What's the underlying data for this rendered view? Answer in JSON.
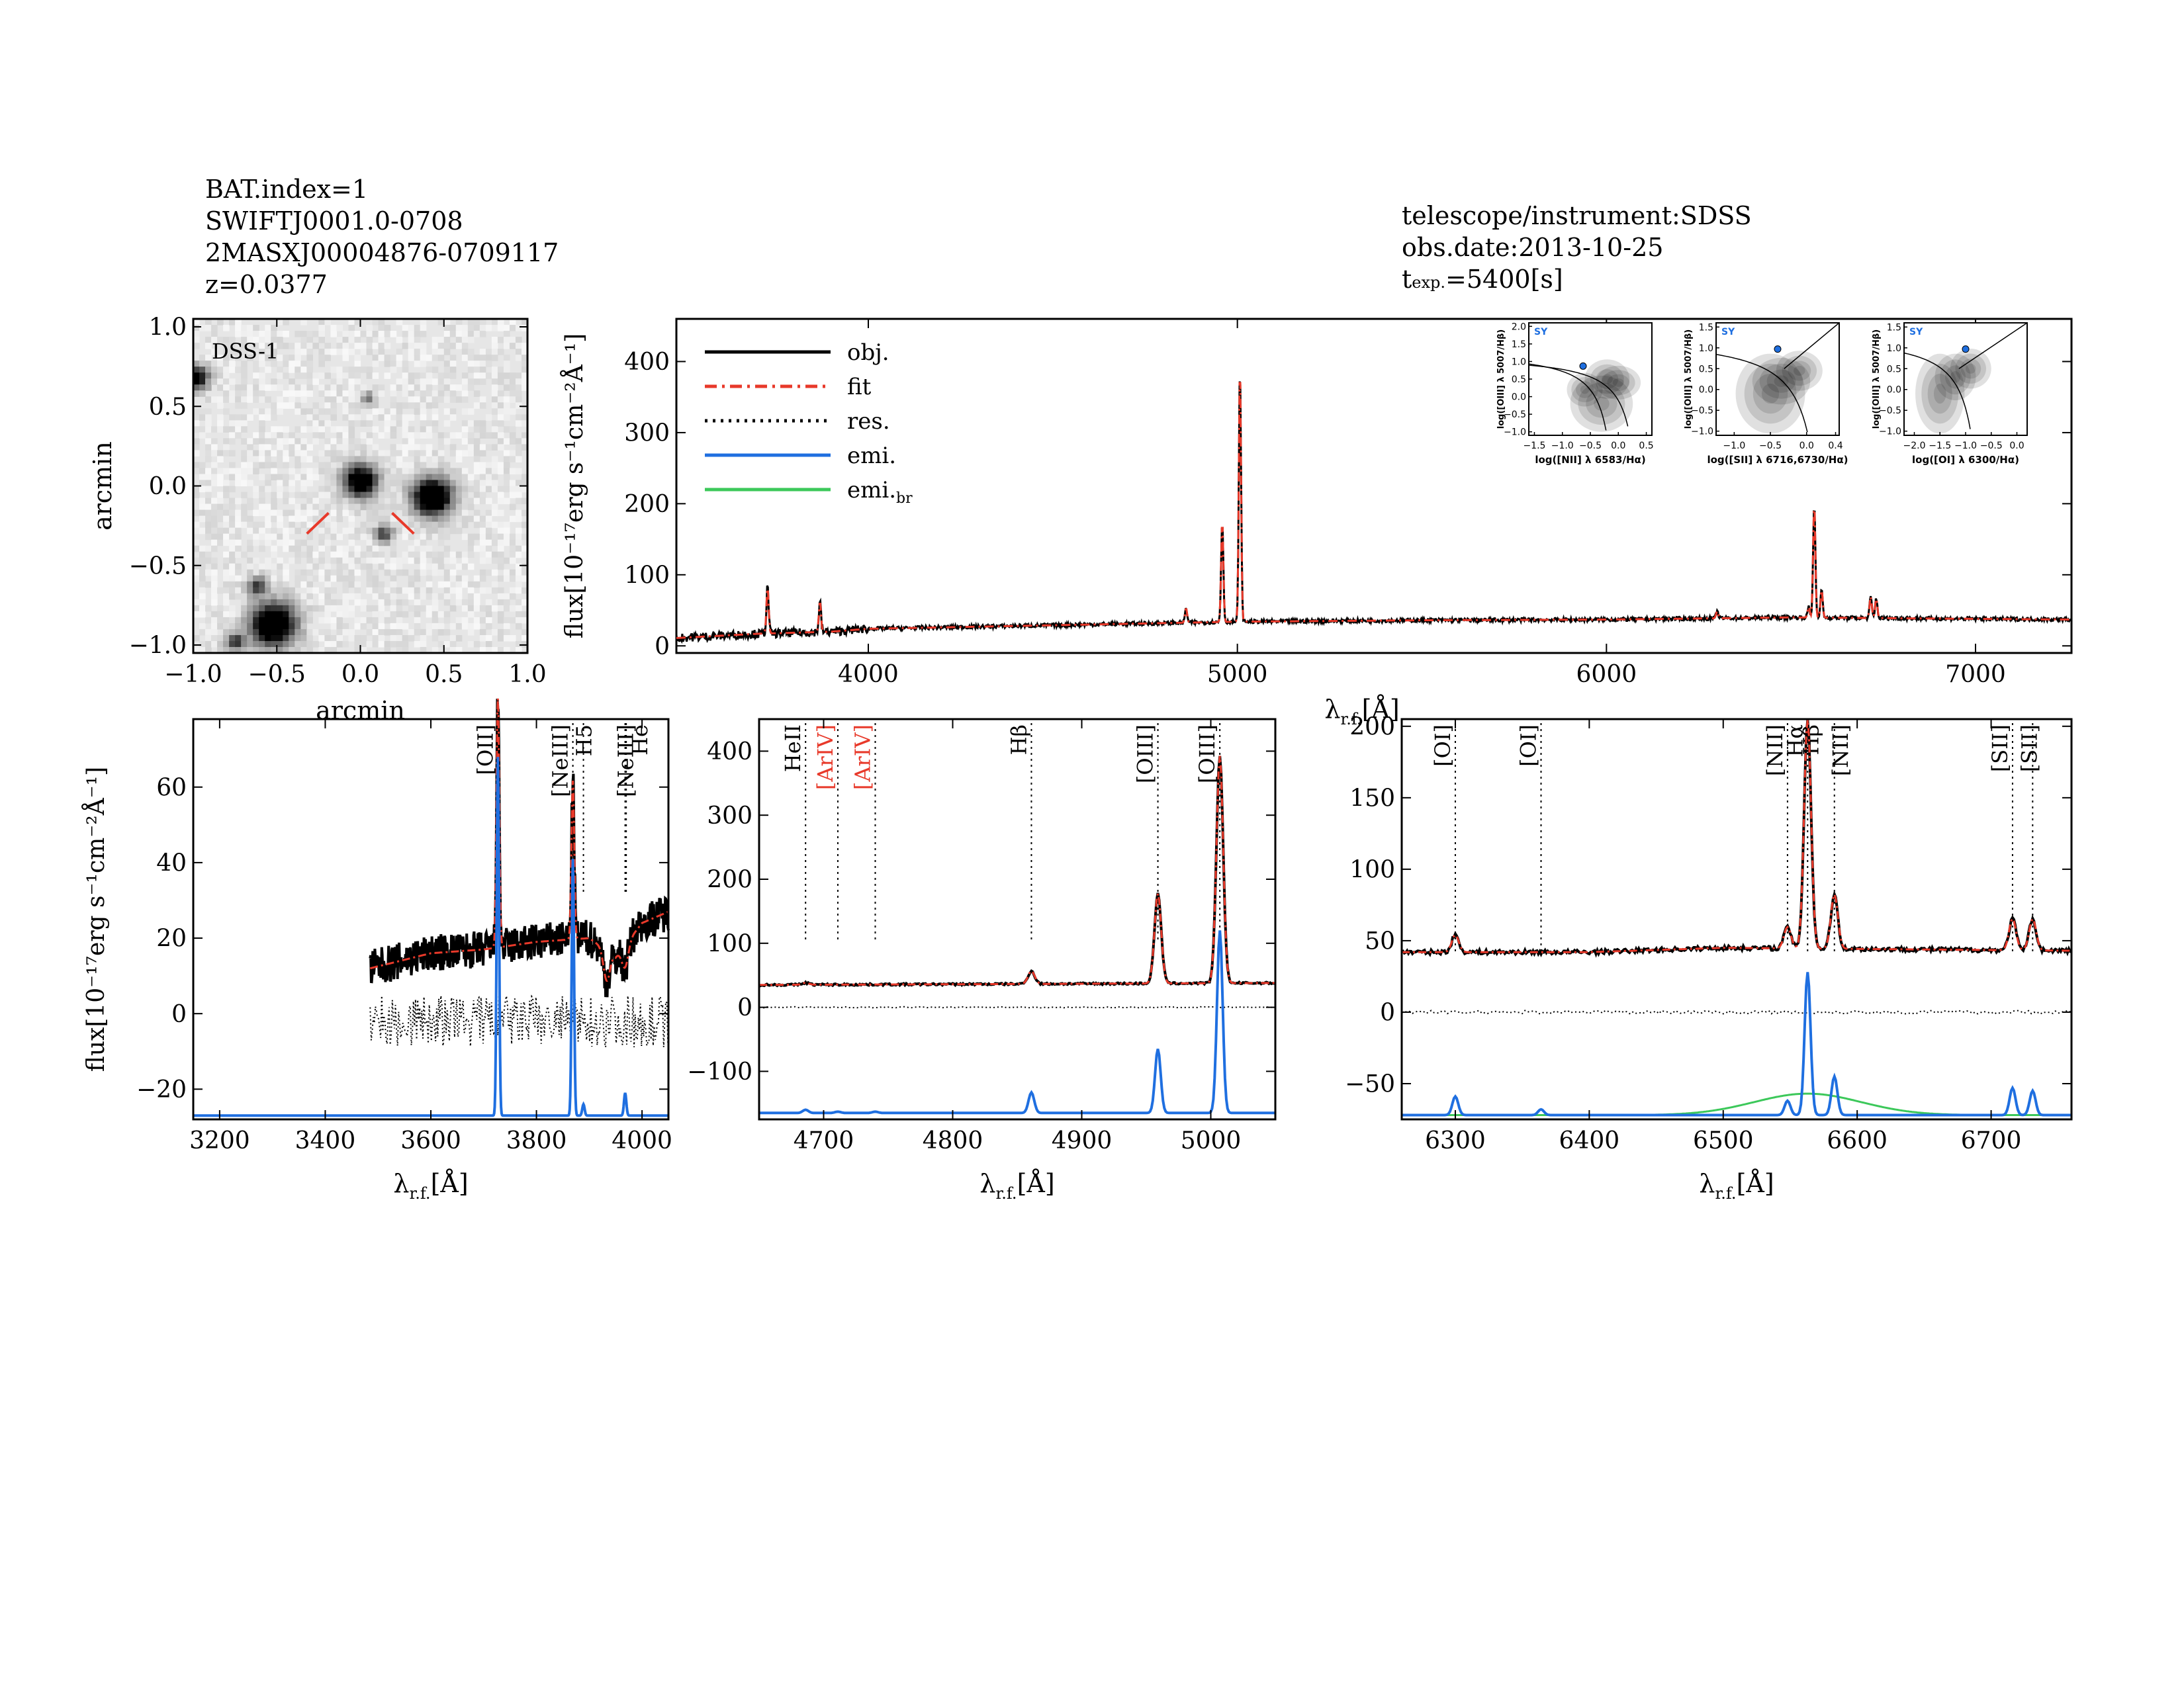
{
  "header_left": {
    "bat_index": "BAT.index=1",
    "swift_name": "SWIFTJ0001.0-0708",
    "counterpart": "2MASXJ00004876-0709117",
    "redshift": "z=0.0377"
  },
  "header_right": {
    "instrument": "telescope/instrument:SDSS",
    "obs_date": "obs.date:2013-10-25",
    "texp_prefix": "t",
    "texp_sub": "exp.",
    "texp_value": "=5400[s]"
  },
  "colors": {
    "obj": "#000000",
    "fit": "#e8392a",
    "res": "#000000",
    "emi": "#1f6fe0",
    "emi_br": "#3cc85a",
    "red_label": "#e8392a",
    "dss_bg": "#e6e6e6"
  },
  "chart_data": [
    {
      "type": "image",
      "panel": "dss",
      "label": "DSS-1",
      "xlabel": "arcmin",
      "ylabel": "arcmin",
      "xlim": [
        -1.0,
        1.0
      ],
      "ylim": [
        -1.05,
        1.05
      ],
      "xticks": [
        "-1.0",
        "-0.5",
        "0.0",
        "0.5",
        "1.0"
      ],
      "yticks": [
        "1.0",
        "0.5",
        "0.0",
        "-0.5",
        "-1.0"
      ],
      "sources": [
        {
          "x": -0.98,
          "y": 0.68,
          "r": 0.05,
          "i": 0.7
        },
        {
          "x": 0.0,
          "y": 0.03,
          "r": 0.07,
          "i": 0.85
        },
        {
          "x": 0.43,
          "y": -0.07,
          "r": 0.08,
          "i": 1.0
        },
        {
          "x": -0.52,
          "y": -0.87,
          "r": 0.09,
          "i": 1.0
        },
        {
          "x": -0.62,
          "y": -0.63,
          "r": 0.04,
          "i": 0.5
        },
        {
          "x": -0.75,
          "y": -0.98,
          "r": 0.04,
          "i": 0.5
        },
        {
          "x": 0.14,
          "y": -0.3,
          "r": 0.04,
          "i": 0.45
        },
        {
          "x": 0.05,
          "y": 0.55,
          "r": 0.03,
          "i": 0.3
        }
      ]
    },
    {
      "type": "line",
      "panel": "overview",
      "xlabel_main": "λ",
      "xlabel_sub": "r.f.",
      "xlabel_unit": "[Å]",
      "ylabel": "flux[10⁻¹⁷erg s⁻¹cm⁻²Å⁻¹]",
      "xlim": [
        3480,
        7260
      ],
      "ylim": [
        -10,
        460
      ],
      "xticks": [
        4000,
        5000,
        6000,
        7000
      ],
      "yticks": [
        0,
        100,
        200,
        300,
        400
      ],
      "continuum": [
        [
          3480,
          11
        ],
        [
          3700,
          17
        ],
        [
          3900,
          20
        ],
        [
          4000,
          24
        ],
        [
          4200,
          26
        ],
        [
          4500,
          29
        ],
        [
          4800,
          32
        ],
        [
          5000,
          34
        ],
        [
          5500,
          36
        ],
        [
          6000,
          37
        ],
        [
          6500,
          40
        ],
        [
          7000,
          38
        ],
        [
          7260,
          37
        ]
      ],
      "lines": [
        [
          3727,
          66
        ],
        [
          3869,
          42
        ],
        [
          4861,
          20
        ],
        [
          4959,
          140
        ],
        [
          5007,
          355
        ],
        [
          6300,
          10
        ],
        [
          6548,
          15
        ],
        [
          6563,
          160
        ],
        [
          6583,
          40
        ],
        [
          6716,
          30
        ],
        [
          6731,
          28
        ]
      ],
      "legend": [
        {
          "label": "obj.",
          "style": "solid",
          "color_key": "obj"
        },
        {
          "label": "fit",
          "style": "dashdot",
          "color_key": "fit"
        },
        {
          "label": "res.",
          "style": "dotted",
          "color_key": "res"
        },
        {
          "label": "emi.",
          "style": "solid",
          "color_key": "emi"
        },
        {
          "label": "emi.",
          "label_sub": "br",
          "style": "solid",
          "color_key": "emi_br"
        }
      ]
    },
    {
      "type": "line",
      "panel": "zoom_blue",
      "xlim": [
        3150,
        4050
      ],
      "ylim": [
        -28,
        78
      ],
      "xticks": [
        3200,
        3400,
        3600,
        3800,
        4000
      ],
      "yticks": [
        -20,
        0,
        20,
        40,
        60
      ],
      "xlabel_main": "λ",
      "xlabel_sub": "r.f.",
      "xlabel_unit": "[Å]",
      "ylabel": "flux[10⁻¹⁷erg s⁻¹cm⁻²Å⁻¹]",
      "data_start": 3485,
      "continuum": [
        [
          3485,
          12
        ],
        [
          3600,
          16
        ],
        [
          3700,
          17
        ],
        [
          3800,
          19
        ],
        [
          3900,
          20
        ],
        [
          3950,
          15
        ],
        [
          4000,
          24
        ],
        [
          4050,
          27
        ]
      ],
      "lines": [
        [
          3727,
          66,
          0
        ],
        [
          3869,
          42,
          0
        ]
      ],
      "absorptions": [
        [
          3933,
          8
        ],
        [
          3968,
          6
        ]
      ],
      "emi_peaks": [
        [
          3727,
          95
        ],
        [
          3869,
          68
        ],
        [
          3889,
          3
        ],
        [
          3968,
          6
        ]
      ],
      "line_labels": [
        {
          "text": "[OII]",
          "wl": 3727,
          "color_key": "obj"
        },
        {
          "text": "[NeIII]",
          "wl": 3869,
          "color_key": "obj"
        },
        {
          "text": "H5",
          "wl": 3889,
          "color_key": "obj"
        },
        {
          "text": "[NeIII]",
          "wl": 3968,
          "color_key": "obj"
        },
        {
          "text": "He",
          "wl": 3970,
          "color_key": "obj"
        }
      ]
    },
    {
      "type": "line",
      "panel": "zoom_oiii",
      "xlim": [
        4650,
        5050
      ],
      "ylim": [
        -175,
        450
      ],
      "xticks": [
        4700,
        4800,
        4900,
        5000
      ],
      "yticks": [
        -100,
        0,
        100,
        200,
        300,
        400
      ],
      "xlabel_main": "λ",
      "xlabel_sub": "r.f.",
      "xlabel_unit": "[Å]",
      "continuum": [
        [
          4650,
          35
        ],
        [
          4800,
          36
        ],
        [
          5050,
          38
        ]
      ],
      "lines": [
        [
          4686,
          3,
          0
        ],
        [
          4861,
          20,
          0
        ],
        [
          4959,
          140,
          0
        ],
        [
          5007,
          355,
          0
        ]
      ],
      "emi_peaks": [
        [
          4686,
          5
        ],
        [
          4711,
          2
        ],
        [
          4740,
          2
        ],
        [
          4861,
          32
        ],
        [
          4959,
          100
        ],
        [
          5007,
          285
        ]
      ],
      "line_labels": [
        {
          "text": "HeII",
          "wl": 4686,
          "color_key": "obj"
        },
        {
          "text": "[ArIV]",
          "wl": 4711,
          "color_key": "red_label"
        },
        {
          "text": "[ArIV]",
          "wl": 4740,
          "color_key": "red_label"
        },
        {
          "text": "Hβ",
          "wl": 4861,
          "color_key": "obj"
        },
        {
          "text": "[OIII]",
          "wl": 4959,
          "color_key": "obj"
        },
        {
          "text": "[OIII]",
          "wl": 5007,
          "color_key": "obj"
        }
      ]
    },
    {
      "type": "line",
      "panel": "zoom_ha",
      "xlim": [
        6260,
        6760
      ],
      "ylim": [
        -75,
        205
      ],
      "xticks": [
        6300,
        6400,
        6500,
        6600,
        6700
      ],
      "yticks": [
        -50,
        0,
        50,
        100,
        150,
        200
      ],
      "xlabel_main": "λ",
      "xlabel_sub": "r.f.",
      "xlabel_unit": "[Å]",
      "continuum": [
        [
          6260,
          42
        ],
        [
          6400,
          42
        ],
        [
          6500,
          45
        ],
        [
          6760,
          43
        ]
      ],
      "lines": [
        [
          6300,
          12,
          0
        ],
        [
          6548,
          15,
          0
        ],
        [
          6563,
          160,
          0
        ],
        [
          6583,
          38,
          0
        ],
        [
          6716,
          22,
          0
        ],
        [
          6731,
          22,
          0
        ]
      ],
      "emi_peaks": [
        [
          6300,
          13
        ],
        [
          6364,
          4
        ],
        [
          6548,
          10
        ],
        [
          6563,
          100
        ],
        [
          6583,
          27
        ],
        [
          6716,
          19
        ],
        [
          6731,
          17
        ]
      ],
      "broad": {
        "center": 6563,
        "amp": 15,
        "sigma": 40
      },
      "line_labels": [
        {
          "text": "[OI]",
          "wl": 6300,
          "color_key": "obj"
        },
        {
          "text": "[OI]",
          "wl": 6364,
          "color_key": "obj"
        },
        {
          "text": "[NII]",
          "wl": 6548,
          "color_key": "obj"
        },
        {
          "text": "Hα",
          "wl": 6563,
          "color_key": "obj"
        },
        {
          "text": "Hβ",
          "wl": 6563,
          "color_key": "obj"
        },
        {
          "text": "[NII]",
          "wl": 6583,
          "color_key": "obj"
        },
        {
          "text": "[SII]",
          "wl": 6716,
          "color_key": "obj"
        },
        {
          "text": "[SII]",
          "wl": 6731,
          "color_key": "obj"
        }
      ]
    },
    {
      "type": "scatter",
      "panel": "bpt_nii",
      "tag": "SY",
      "xlabel": "log([NII] λ 6583/Hα)",
      "ylabel": "log([OIII] λ 5007/Hβ)",
      "xlim": [
        -1.6,
        0.6
      ],
      "ylim": [
        -1.1,
        2.1
      ],
      "xticks": [
        "-1.5",
        "-1.0",
        "-0.5",
        "0.0",
        "0.5"
      ],
      "yticks": [
        "2.0",
        "1.5",
        "1.0",
        "0.5",
        "0.0",
        "-0.5",
        "-1.0"
      ],
      "point": {
        "x": -0.63,
        "y": 0.87
      }
    },
    {
      "type": "scatter",
      "panel": "bpt_sii",
      "tag": "SY",
      "xlabel": "log([SII] λ 6716,6730/Hα)",
      "ylabel": "log([OIII] λ 5007/Hβ)",
      "xlim": [
        -1.25,
        0.45
      ],
      "ylim": [
        -1.1,
        1.6
      ],
      "xticks": [
        "-1.0",
        "-0.5",
        "0.0",
        "0.4"
      ],
      "yticks": [
        "1.5",
        "1.0",
        "0.5",
        "0.0",
        "-0.5",
        "-1.0"
      ],
      "point": {
        "x": -0.4,
        "y": 0.97
      }
    },
    {
      "type": "scatter",
      "panel": "bpt_oi",
      "tag": "SY",
      "xlabel": "log([OI] λ 6300/Hα)",
      "ylabel": "log([OIII] λ 5007/Hβ)",
      "xlim": [
        -2.2,
        0.2
      ],
      "ylim": [
        -1.1,
        1.6
      ],
      "xticks": [
        "-2.0",
        "-1.5",
        "-1.0",
        "-0.5",
        "0.0"
      ],
      "yticks": [
        "1.5",
        "1.0",
        "0.5",
        "0.0",
        "-0.5",
        "-1.0"
      ],
      "point": {
        "x": -1.0,
        "y": 0.97
      }
    }
  ]
}
